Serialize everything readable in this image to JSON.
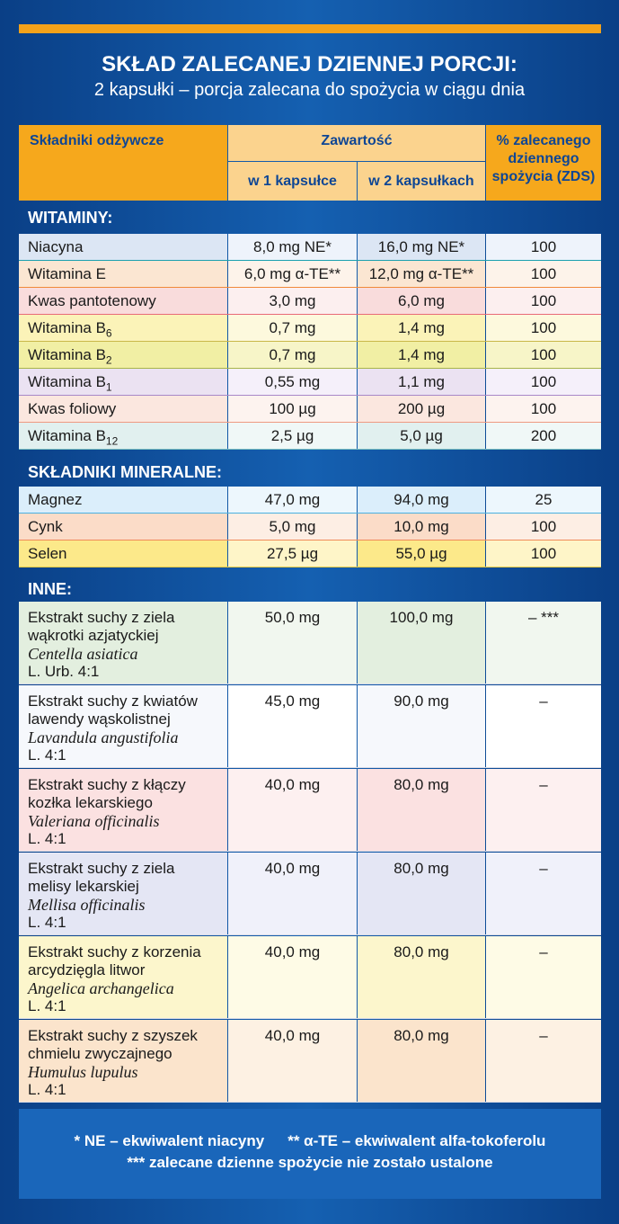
{
  "header": {
    "title": "SKŁAD ZALECANEJ DZIENNEJ PORCJI:",
    "subtitle": "2 kapsułki – porcja zalecana do spożycia w ciągu dnia"
  },
  "columns": {
    "nutrient": "Składniki odżywcze",
    "content": "Zawartość",
    "per1": "w 1 kapsułce",
    "per2": "w 2 kapsułkach",
    "zds": [
      "% zalecanego",
      "dziennego",
      "spożycia (ZDS)"
    ]
  },
  "sections": {
    "vitamins": {
      "label": "WITAMINY:",
      "rows": [
        {
          "name": "Niacyna",
          "sub": "",
          "per1": "8,0 mg NE*",
          "per2": "16,0 mg NE*",
          "zds": "100"
        },
        {
          "name": "Witamina E",
          "sub": "",
          "per1": "6,0 mg α-TE**",
          "per2": "12,0 mg α-TE**",
          "zds": "100"
        },
        {
          "name": "Kwas pantotenowy",
          "sub": "",
          "per1": "3,0 mg",
          "per2": "6,0 mg",
          "zds": "100"
        },
        {
          "name": "Witamina B",
          "sub": "6",
          "per1": "0,7 mg",
          "per2": "1,4 mg",
          "zds": "100"
        },
        {
          "name": "Witamina B",
          "sub": "2",
          "per1": "0,7 mg",
          "per2": "1,4 mg",
          "zds": "100"
        },
        {
          "name": "Witamina B",
          "sub": "1",
          "per1": "0,55 mg",
          "per2": "1,1 mg",
          "zds": "100"
        },
        {
          "name": "Kwas foliowy",
          "sub": "",
          "per1": "100 µg",
          "per2": "200 µg",
          "zds": "100"
        },
        {
          "name": "Witamina B",
          "sub": "12",
          "per1": "2,5 µg",
          "per2": "5,0 µg",
          "zds": "200"
        }
      ]
    },
    "minerals": {
      "label": "SKŁADNIKI MINERALNE:",
      "rows": [
        {
          "name": "Magnez",
          "per1": "47,0 mg",
          "per2": "94,0 mg",
          "zds": "25"
        },
        {
          "name": "Cynk",
          "per1": "5,0 mg",
          "per2": "10,0 mg",
          "zds": "100"
        },
        {
          "name": "Selen",
          "per1": "27,5 µg",
          "per2": "55,0 µg",
          "zds": "100"
        }
      ]
    },
    "other": {
      "label": "INNE:",
      "rows": [
        {
          "line1": "Ekstrakt suchy z ziela",
          "line2": "wąkrotki azjatyckiej",
          "latin": "Centella asiatica",
          "ratio": "L. Urb. 4:1",
          "per1": "50,0 mg",
          "per2": "100,0 mg",
          "zds": "– ***"
        },
        {
          "line1": "Ekstrakt suchy z kwiatów",
          "line2": "lawendy wąskolistnej",
          "latin": "Lavandula angustifolia",
          "ratio": "L. 4:1",
          "per1": "45,0 mg",
          "per2": "90,0 mg",
          "zds": "–"
        },
        {
          "line1": "Ekstrakt suchy z kłączy",
          "line2": "kozłka lekarskiego",
          "latin": "Valeriana officinalis",
          "ratio": "L. 4:1",
          "per1": "40,0 mg",
          "per2": "80,0 mg",
          "zds": "–"
        },
        {
          "line1": "Ekstrakt suchy z ziela",
          "line2": "melisy lekarskiej",
          "latin": "Mellisa officinalis",
          "ratio": "L. 4:1",
          "per1": "40,0 mg",
          "per2": "80,0 mg",
          "zds": "–"
        },
        {
          "line1": "Ekstrakt suchy z korzenia",
          "line2": "arcydzięgla litwor",
          "latin": "Angelica archangelica",
          "ratio": "L. 4:1",
          "per1": "40,0 mg",
          "per2": "80,0 mg",
          "zds": "–"
        },
        {
          "line1": "Ekstrakt suchy z szyszek",
          "line2": "chmielu zwyczajnego",
          "latin": "Humulus lupulus",
          "ratio": "L. 4:1",
          "per1": "40,0 mg",
          "per2": "80,0 mg",
          "zds": "–"
        }
      ]
    }
  },
  "footnotes": {
    "ne": "* NE – ekwiwalent niacyny",
    "te": "** α-TE – ekwiwalent alfa-tokoferolu",
    "zds": "*** zalecane dzienne spożycie nie  zostało ustalone"
  },
  "colors": {
    "accent": "#f6a81c",
    "header_light": "#fbd38e",
    "header_text": "#0e4695",
    "background": "#0f4c97"
  }
}
